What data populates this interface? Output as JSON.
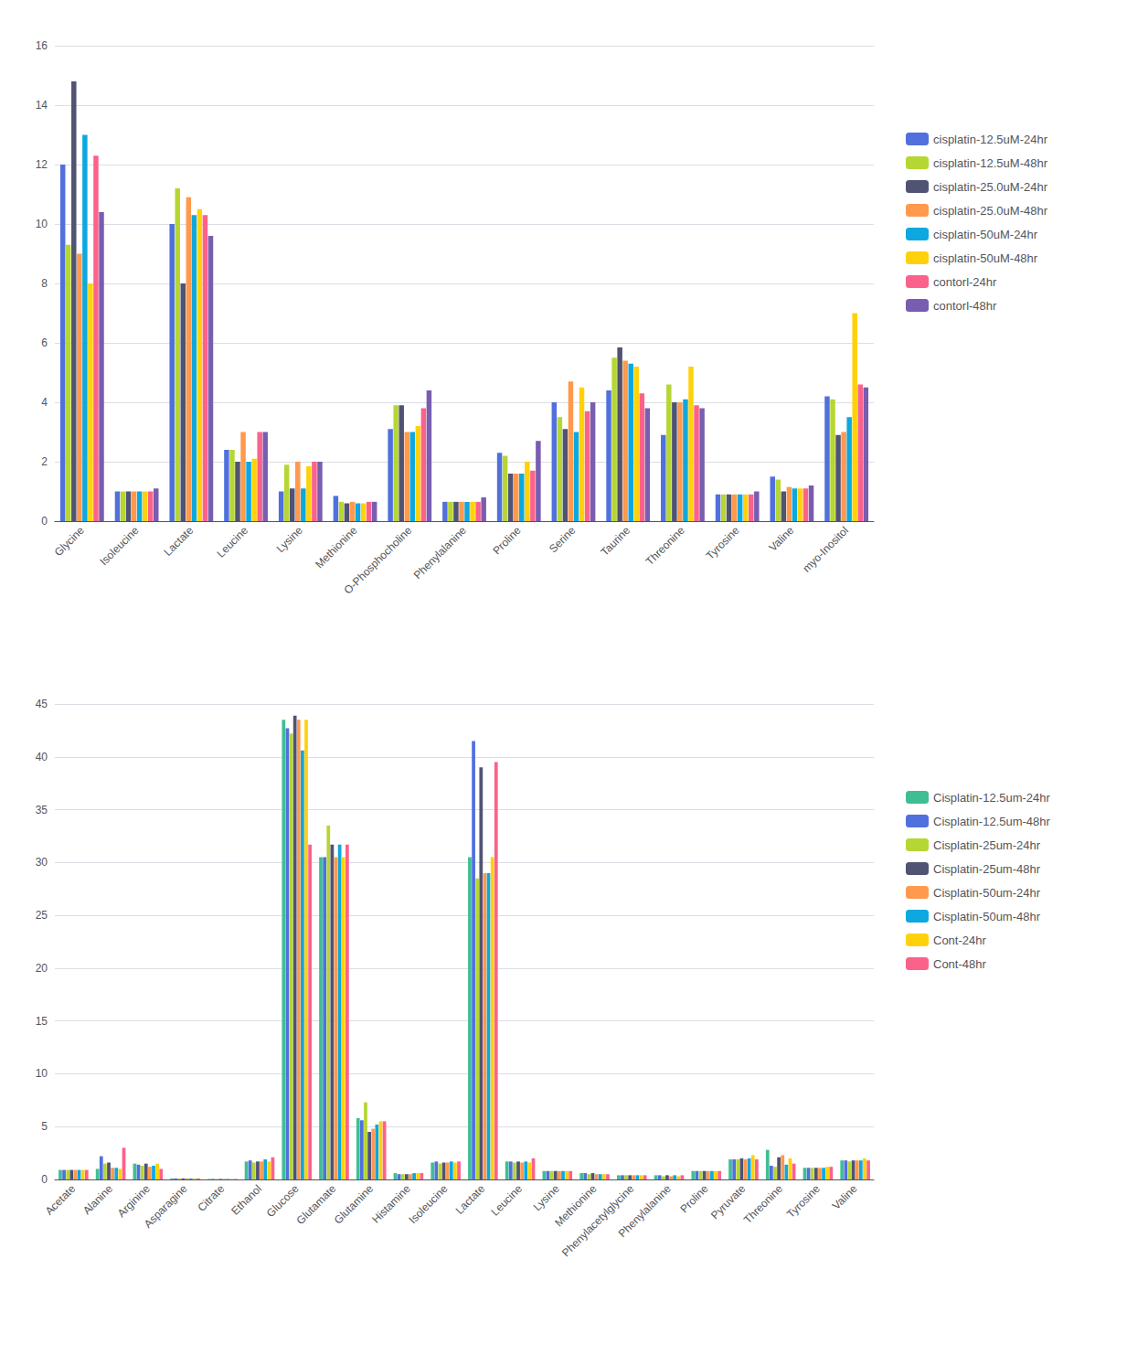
{
  "chart_data": [
    {
      "type": "bar",
      "categories": [
        "Glycine",
        "Isoleucine",
        "Lactate",
        "Leucine",
        "Lysine",
        "Methionine",
        "O-Phosphocholine",
        "Phenylalanine",
        "Proline",
        "Serine",
        "Taurine",
        "Threonine",
        "Tyrosine",
        "Valine",
        "myo-Inositol"
      ],
      "series": [
        {
          "name": "cisplatin-12.5uM-24hr",
          "values": [
            12.0,
            1.0,
            10.0,
            2.4,
            1.0,
            0.85,
            3.1,
            0.65,
            2.3,
            4.0,
            4.4,
            2.9,
            0.9,
            1.5,
            4.2
          ]
        },
        {
          "name": "cisplatin-12.5uM-48hr",
          "values": [
            9.3,
            1.0,
            11.2,
            2.4,
            1.9,
            0.65,
            3.9,
            0.65,
            2.2,
            3.5,
            5.5,
            4.6,
            0.9,
            1.4,
            4.1
          ]
        },
        {
          "name": "cisplatin-25.0uM-24hr",
          "values": [
            14.8,
            1.0,
            8.0,
            2.0,
            1.1,
            0.6,
            3.9,
            0.65,
            1.6,
            3.1,
            5.85,
            4.0,
            0.9,
            1.0,
            2.9
          ]
        },
        {
          "name": "cisplatin-25.0uM-48hr",
          "values": [
            9.0,
            1.0,
            10.9,
            3.0,
            2.0,
            0.65,
            3.0,
            0.65,
            1.6,
            4.7,
            5.4,
            4.0,
            0.9,
            1.15,
            3.0
          ]
        },
        {
          "name": "cisplatin-50uM-24hr",
          "values": [
            13.0,
            1.0,
            10.3,
            2.0,
            1.1,
            0.6,
            3.0,
            0.65,
            1.6,
            3.0,
            5.3,
            4.1,
            0.9,
            1.1,
            3.5
          ]
        },
        {
          "name": "cisplatin-50uM-48hr",
          "values": [
            8.0,
            1.0,
            10.5,
            2.1,
            1.85,
            0.6,
            3.2,
            0.65,
            2.0,
            4.5,
            5.2,
            5.2,
            0.9,
            1.1,
            7.0
          ]
        },
        {
          "name": "contorl-24hr",
          "values": [
            12.3,
            1.0,
            10.3,
            3.0,
            2.0,
            0.65,
            3.8,
            0.65,
            1.7,
            3.7,
            4.3,
            3.9,
            0.9,
            1.1,
            4.6
          ]
        },
        {
          "name": "contorl-48hr",
          "values": [
            10.4,
            1.1,
            9.6,
            3.0,
            2.0,
            0.65,
            4.4,
            0.8,
            2.7,
            4.0,
            3.8,
            3.8,
            1.0,
            1.2,
            4.5
          ]
        }
      ],
      "ylim": [
        0,
        16
      ],
      "yticks": [
        0,
        2,
        4,
        6,
        8,
        10,
        12,
        14,
        16
      ],
      "grid": true,
      "legend": "right"
    },
    {
      "type": "bar",
      "categories": [
        "Acetate",
        "Alanine",
        "Arginine",
        "Asparagine",
        "Citrate",
        "Ethanol",
        "Glucose",
        "Glutamate",
        "Glutamine",
        "Histamine",
        "Isoleucine",
        "Lactate",
        "Leucine",
        "Lysine",
        "Methionine",
        "Phenylacetylglycine",
        "Phenylalanine",
        "Proline",
        "Pyruvate",
        "Threonine",
        "Tyrosine",
        "Valine"
      ],
      "series": [
        {
          "name": "Cisplatin-12.5um-24hr",
          "values": [
            0.9,
            1.0,
            1.5,
            0.1,
            0.05,
            1.7,
            43.5,
            30.5,
            5.8,
            0.6,
            1.6,
            30.5,
            1.7,
            0.8,
            0.6,
            0.4,
            0.4,
            0.8,
            1.9,
            2.8,
            1.1,
            1.8
          ]
        },
        {
          "name": "Cisplatin-12.5um-48hr",
          "values": [
            0.9,
            2.2,
            1.4,
            0.1,
            0.05,
            1.8,
            42.7,
            30.5,
            5.6,
            0.5,
            1.7,
            41.5,
            1.7,
            0.8,
            0.6,
            0.4,
            0.4,
            0.8,
            1.9,
            1.3,
            1.1,
            1.8
          ]
        },
        {
          "name": "Cisplatin-25um-24hr",
          "values": [
            0.9,
            1.5,
            1.3,
            0.1,
            0.05,
            1.6,
            42.2,
            33.5,
            7.3,
            0.5,
            1.5,
            28.5,
            1.6,
            0.8,
            0.5,
            0.4,
            0.3,
            0.8,
            1.9,
            1.2,
            1.1,
            1.7
          ]
        },
        {
          "name": "Cisplatin-25um-48hr",
          "values": [
            0.9,
            1.6,
            1.5,
            0.1,
            0.05,
            1.7,
            43.9,
            31.7,
            4.5,
            0.5,
            1.6,
            39.0,
            1.7,
            0.8,
            0.6,
            0.4,
            0.4,
            0.8,
            2.0,
            2.1,
            1.1,
            1.8
          ]
        },
        {
          "name": "Cisplatin-50um-24hr",
          "values": [
            0.9,
            1.1,
            1.2,
            0.1,
            0.05,
            1.7,
            43.5,
            30.5,
            4.8,
            0.5,
            1.6,
            29.0,
            1.6,
            0.8,
            0.5,
            0.4,
            0.3,
            0.8,
            1.9,
            2.3,
            1.1,
            1.8
          ]
        },
        {
          "name": "Cisplatin-50um-48hr",
          "values": [
            0.9,
            1.1,
            1.3,
            0.1,
            0.05,
            1.9,
            40.6,
            31.7,
            5.2,
            0.6,
            1.7,
            29.0,
            1.7,
            0.8,
            0.5,
            0.4,
            0.4,
            0.8,
            2.0,
            1.4,
            1.1,
            1.8
          ]
        },
        {
          "name": "Cont-24hr",
          "values": [
            0.9,
            1.0,
            1.5,
            0.1,
            0.05,
            1.7,
            43.5,
            30.5,
            5.5,
            0.6,
            1.6,
            30.5,
            1.6,
            0.8,
            0.5,
            0.4,
            0.3,
            0.8,
            2.3,
            2.0,
            1.2,
            2.0
          ]
        },
        {
          "name": "Cont-48hr",
          "values": [
            0.9,
            3.0,
            1.0,
            0.1,
            0.05,
            2.1,
            31.7,
            31.7,
            5.5,
            0.6,
            1.7,
            39.5,
            2.0,
            0.8,
            0.5,
            0.4,
            0.4,
            0.8,
            1.9,
            1.5,
            1.2,
            1.8
          ]
        }
      ],
      "ylim": [
        0,
        45
      ],
      "yticks": [
        0,
        5,
        10,
        15,
        20,
        25,
        30,
        35,
        40,
        45
      ],
      "grid": true,
      "legend": "right"
    }
  ]
}
